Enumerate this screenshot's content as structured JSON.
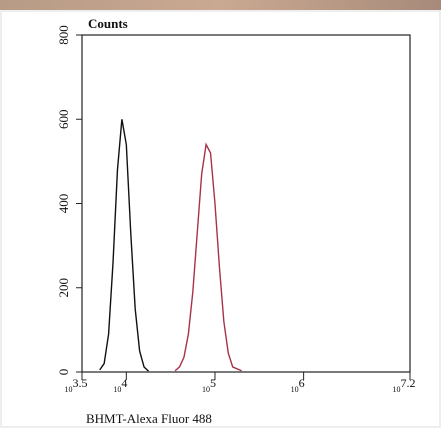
{
  "chart_data": {
    "type": "line",
    "title": "Counts",
    "x_label": "BHMT-Alexa Fluor 488",
    "tick_base": "10",
    "xlim": [
      3.5,
      7.2
    ],
    "xticks": [
      {
        "value": 3.5,
        "label": "3.5"
      },
      {
        "value": 4,
        "label": "4"
      },
      {
        "value": 5,
        "label": "5"
      },
      {
        "value": 6,
        "label": "6"
      },
      {
        "value": 7.2,
        "label": "7.2"
      }
    ],
    "ylim": [
      0,
      800
    ],
    "yticks": [
      0,
      200,
      400,
      600,
      800
    ],
    "series": [
      {
        "color": "#111111",
        "x": [
          3.7,
          3.75,
          3.8,
          3.85,
          3.9,
          3.95,
          4.0,
          4.05,
          4.1,
          4.15,
          4.2,
          4.25
        ],
        "values": [
          5,
          20,
          90,
          260,
          480,
          600,
          540,
          330,
          150,
          50,
          12,
          2
        ]
      },
      {
        "color": "#a8324a",
        "x": [
          4.55,
          4.6,
          4.65,
          4.7,
          4.75,
          4.8,
          4.85,
          4.9,
          4.95,
          5.0,
          5.05,
          5.1,
          5.15,
          5.2,
          5.3
        ],
        "values": [
          3,
          12,
          35,
          90,
          190,
          330,
          470,
          540,
          520,
          400,
          250,
          120,
          45,
          12,
          3
        ]
      }
    ]
  }
}
